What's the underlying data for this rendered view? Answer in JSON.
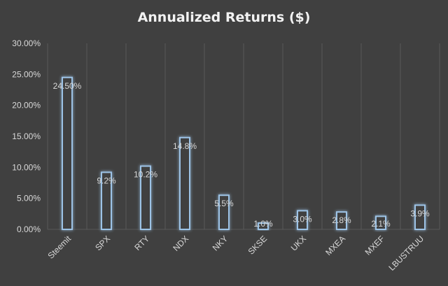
{
  "chart_data": {
    "type": "bar",
    "title": "Annualized Returns ($)",
    "xlabel": "",
    "ylabel": "",
    "categories": [
      "Steemit",
      "SPX",
      "RTY",
      "NDX",
      "NKY",
      "SKSE",
      "UKX",
      "MXEA",
      "MXEF",
      "LBUSTRUU"
    ],
    "values": [
      24.5,
      9.2,
      10.2,
      14.8,
      5.5,
      1.0,
      3.0,
      2.8,
      2.1,
      3.9
    ],
    "data_labels": [
      "24.50%",
      "9.2%",
      "10.2%",
      "14.8%",
      "5.5%",
      "1.0%",
      "3.0%",
      "2.8%",
      "2.1%",
      "3.9%"
    ],
    "ylim": [
      0,
      30
    ],
    "yticks": [
      0,
      5,
      10,
      15,
      20,
      25,
      30
    ],
    "ytick_labels": [
      "0.00%",
      "5.00%",
      "10.00%",
      "15.00%",
      "20.00%",
      "25.00%",
      "30.00%"
    ],
    "grid": "vertical",
    "legend": "none",
    "colors": {
      "background": "#404040",
      "bar_fill": "#404040",
      "bar_stroke": "#5b9bd5",
      "bar_glow": "#9dc3e6",
      "text": "#d9d9d9",
      "title": "#f2f2f2",
      "grid": "#595959"
    }
  }
}
